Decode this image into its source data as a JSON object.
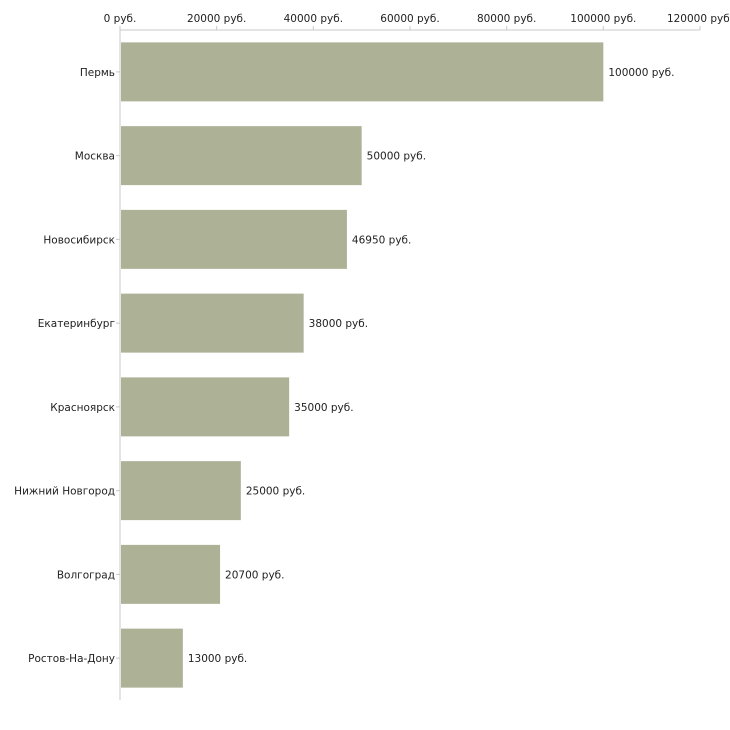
{
  "chart_data": {
    "type": "bar",
    "orientation": "horizontal",
    "title": "",
    "xlabel": "",
    "ylabel": "",
    "xlim": [
      0,
      120000
    ],
    "x_ticks": [
      0,
      20000,
      40000,
      60000,
      80000,
      100000,
      120000
    ],
    "x_tick_labels": [
      "0 руб.",
      "20000 руб.",
      "40000 руб.",
      "60000 руб.",
      "80000 руб.",
      "100000 руб.",
      "120000 руб."
    ],
    "categories": [
      "Пермь",
      "Москва",
      "Новосибирск",
      "Екатеринбург",
      "Красноярск",
      "Нижний Новгород",
      "Волгоград",
      "Ростов-На-Дону"
    ],
    "values": [
      100000,
      50000,
      46950,
      38000,
      35000,
      25000,
      20700,
      13000
    ],
    "value_labels": [
      "100000 руб.",
      "50000 руб.",
      "46950 руб.",
      "38000 руб.",
      "35000 руб.",
      "25000 руб.",
      "20700 руб.",
      "13000 руб."
    ],
    "axis_position": "top",
    "grid": false,
    "bar_color": "#adb297",
    "axis_color": "#c8c8c8"
  }
}
